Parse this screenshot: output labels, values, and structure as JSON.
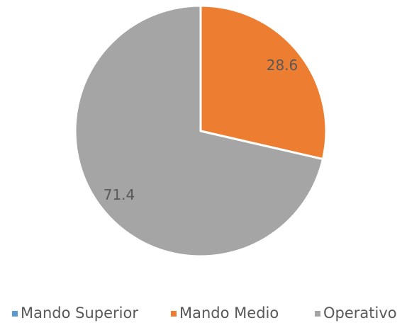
{
  "chart_data": {
    "type": "pie",
    "categories": [
      "Mando Superior",
      "Mando Medio",
      "Operativo"
    ],
    "values": [
      0,
      28.6,
      71.4
    ],
    "colors": [
      "#5b9bd5",
      "#ed7d31",
      "#a5a5a5"
    ],
    "legend": "bottom"
  }
}
